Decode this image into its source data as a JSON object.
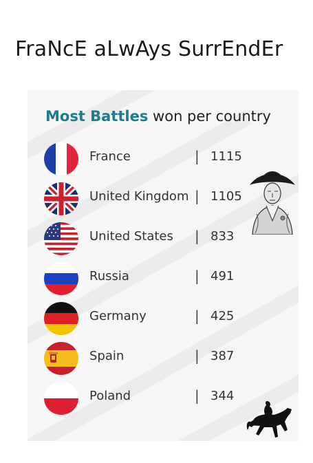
{
  "meme_title": "FraNcE aLwAys SurrEndEr",
  "chart_data": {
    "type": "table",
    "title_highlight": "Most Battles",
    "title_rest": " won per country",
    "categories": [
      "France",
      "United Kingdom",
      "United States",
      "Russia",
      "Germany",
      "Spain",
      "Poland"
    ],
    "values": [
      1115,
      1105,
      833,
      491,
      425,
      387,
      344
    ]
  },
  "rows": [
    {
      "country": "France",
      "value": "1115",
      "flag": "france-flag-icon"
    },
    {
      "country": "United Kingdom",
      "value": "1105",
      "flag": "uk-flag-icon"
    },
    {
      "country": "United States",
      "value": "833",
      "flag": "us-flag-icon"
    },
    {
      "country": "Russia",
      "value": "491",
      "flag": "russia-flag-icon"
    },
    {
      "country": "Germany",
      "value": "425",
      "flag": "germany-flag-icon"
    },
    {
      "country": "Spain",
      "value": "387",
      "flag": "spain-flag-icon"
    },
    {
      "country": "Poland",
      "value": "344",
      "flag": "poland-flag-icon"
    }
  ],
  "separator": "|",
  "colors": {
    "title_highlight": "#1e7b8a",
    "card_background": "#f5f5f5"
  },
  "decorations": [
    "napoleon-portrait-icon",
    "horse-rider-silhouette-icon"
  ]
}
